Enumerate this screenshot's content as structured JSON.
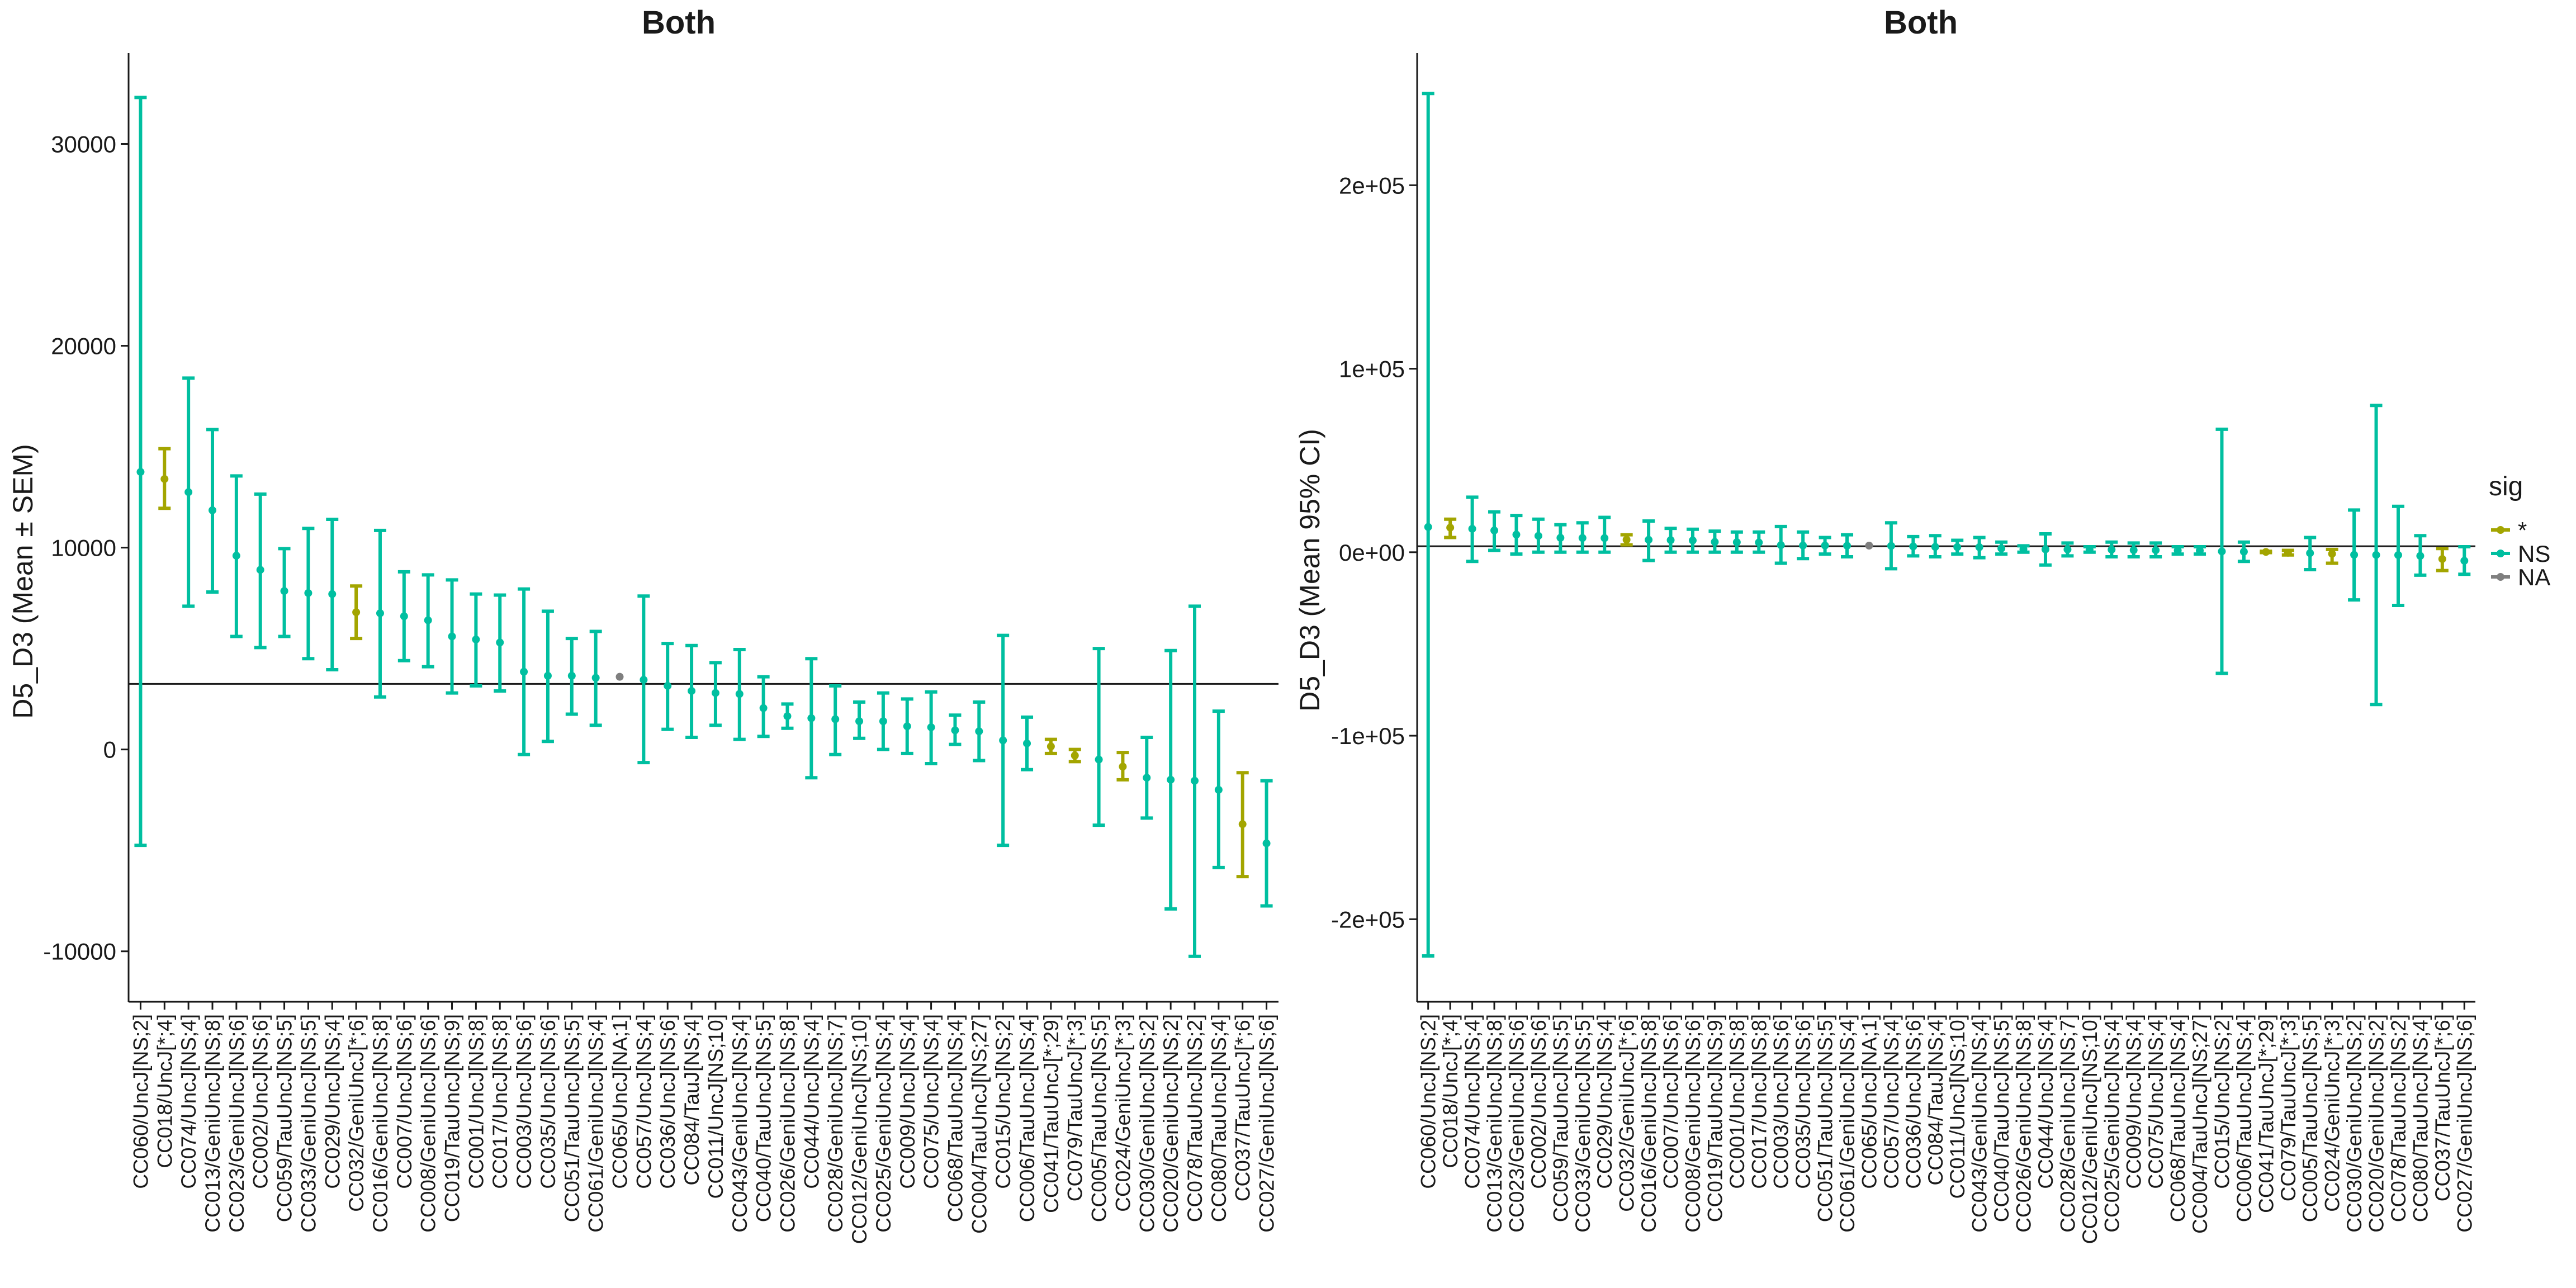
{
  "chart_data": [
    {
      "type": "errorbar",
      "title": "Both",
      "ylabel": "D5_D3 (Mean ± SEM)",
      "xlabel": "",
      "ylim": [
        -12500,
        34500
      ],
      "yticks": [
        -10000,
        0,
        10000,
        20000,
        30000
      ],
      "ytick_labels": [
        "-10000",
        "0",
        "10000",
        "20000",
        "30000"
      ],
      "hline": 3250,
      "categories": [
        "CC060/UncJ[NS;2]",
        "CC018/UncJ[*;4]",
        "CC074/UncJ[NS;4]",
        "CC013/GeniUncJ[NS;8]",
        "CC023/GeniUncJ[NS;6]",
        "CC002/UncJ[NS;6]",
        "CC059/TauUncJ[NS;5]",
        "CC033/GeniUncJ[NS;5]",
        "CC029/UncJ[NS;4]",
        "CC032/GeniUncJ[*;6]",
        "CC016/GeniUncJ[NS;8]",
        "CC007/UncJ[NS;6]",
        "CC008/GeniUncJ[NS;6]",
        "CC019/TauUncJ[NS;9]",
        "CC001/UncJ[NS;8]",
        "CC017/UncJ[NS;8]",
        "CC003/UncJ[NS;6]",
        "CC035/UncJ[NS;6]",
        "CC051/TauUncJ[NS;5]",
        "CC061/GeniUncJ[NS;4]",
        "CC065/UncJ[NA;1]",
        "CC057/UncJ[NS;4]",
        "CC036/UncJ[NS;6]",
        "CC084/TauJ[NS;4]",
        "CC011/UncJ[NS;10]",
        "CC043/GeniUncJ[NS;4]",
        "CC040/TauUncJ[NS;5]",
        "CC026/GeniUncJ[NS;8]",
        "CC044/UncJ[NS;4]",
        "CC028/GeniUncJ[NS;7]",
        "CC012/GeniUncJ[NS;10]",
        "CC025/GeniUncJ[NS;4]",
        "CC009/UncJ[NS;4]",
        "CC075/UncJ[NS;4]",
        "CC068/TauUncJ[NS;4]",
        "CC004/TauUncJ[NS;27]",
        "CC015/UncJ[NS;2]",
        "CC006/TauUncJ[NS;4]",
        "CC041/TauUncJ[*;29]",
        "CC079/TauUncJ[*;3]",
        "CC005/TauUncJ[NS;5]",
        "CC024/GeniUncJ[*;3]",
        "CC030/GeniUncJ[NS;2]",
        "CC020/GeniUncJ[NS;2]",
        "CC078/TauUncJ[NS;2]",
        "CC080/TauUncJ[NS;4]",
        "CC037/TauUncJ[*;6]",
        "CC027/GeniUncJ[NS;6]"
      ],
      "mean": [
        13750,
        13400,
        12750,
        11850,
        9600,
        8900,
        7850,
        7750,
        7700,
        6800,
        6750,
        6600,
        6400,
        5600,
        5450,
        5300,
        3850,
        3650,
        3650,
        3550,
        3600,
        3450,
        3150,
        2900,
        2800,
        2750,
        2050,
        1650,
        1550,
        1500,
        1400,
        1400,
        1150,
        1100,
        950,
        900,
        450,
        300,
        150,
        -300,
        -500,
        -850,
        -1400,
        -1500,
        -1550,
        -2000,
        -3700,
        -4650
      ],
      "lower": [
        -4750,
        11950,
        7100,
        7800,
        5600,
        5050,
        5600,
        4500,
        3950,
        5500,
        2600,
        4400,
        4100,
        2800,
        3150,
        2900,
        -250,
        400,
        1750,
        1200,
        3600,
        -650,
        1000,
        600,
        1200,
        500,
        650,
        1050,
        -1400,
        -250,
        550,
        0,
        -200,
        -700,
        250,
        -550,
        -4750,
        -1000,
        -200,
        -600,
        -3750,
        -1500,
        -3400,
        -7900,
        -10250,
        -5850,
        -6300,
        -7750
      ],
      "upper": [
        32300,
        14900,
        18400,
        15850,
        13550,
        12650,
        9950,
        10950,
        11400,
        8100,
        10850,
        8800,
        8650,
        8400,
        7700,
        7650,
        7950,
        6850,
        5500,
        5850,
        3600,
        7600,
        5250,
        5150,
        4300,
        4950,
        3600,
        2250,
        4500,
        3150,
        2350,
        2800,
        2500,
        2850,
        1700,
        2350,
        5650,
        1600,
        500,
        0,
        5000,
        -150,
        600,
        4900,
        7100,
        1900,
        -1150,
        -1550
      ],
      "sig": [
        "NS",
        "*",
        "NS",
        "NS",
        "NS",
        "NS",
        "NS",
        "NS",
        "NS",
        "*",
        "NS",
        "NS",
        "NS",
        "NS",
        "NS",
        "NS",
        "NS",
        "NS",
        "NS",
        "NS",
        "NA",
        "NS",
        "NS",
        "NS",
        "NS",
        "NS",
        "NS",
        "NS",
        "NS",
        "NS",
        "NS",
        "NS",
        "NS",
        "NS",
        "NS",
        "NS",
        "NS",
        "NS",
        "*",
        "*",
        "NS",
        "*",
        "NS",
        "NS",
        "NS",
        "NS",
        "*",
        "NS"
      ]
    },
    {
      "type": "errorbar",
      "title": "Both",
      "ylabel": "D5_D3 (Mean 95% CI)",
      "xlabel": "",
      "ylim": [
        -245000,
        272000
      ],
      "yticks": [
        -200000,
        -100000,
        0,
        100000,
        200000
      ],
      "ytick_labels": [
        "-2e+05",
        "-1e+05",
        "0e+00",
        "1e+05",
        "2e+05"
      ],
      "hline": 3250,
      "categories": [
        "CC060/UncJ[NS;2]",
        "CC018/UncJ[*;4]",
        "CC074/UncJ[NS;4]",
        "CC013/GeniUncJ[NS;8]",
        "CC023/GeniUncJ[NS;6]",
        "CC002/UncJ[NS;6]",
        "CC059/TauUncJ[NS;5]",
        "CC033/GeniUncJ[NS;5]",
        "CC029/UncJ[NS;4]",
        "CC032/GeniUncJ[*;6]",
        "CC016/GeniUncJ[NS;8]",
        "CC007/UncJ[NS;6]",
        "CC008/GeniUncJ[NS;6]",
        "CC019/TauUncJ[NS;9]",
        "CC001/UncJ[NS;8]",
        "CC017/UncJ[NS;8]",
        "CC003/UncJ[NS;6]",
        "CC035/UncJ[NS;6]",
        "CC051/TauUncJ[NS;5]",
        "CC061/GeniUncJ[NS;4]",
        "CC065/UncJ[NA;1]",
        "CC057/UncJ[NS;4]",
        "CC036/UncJ[NS;6]",
        "CC084/TauJ[NS;4]",
        "CC011/UncJ[NS;10]",
        "CC043/GeniUncJ[NS;4]",
        "CC040/TauUncJ[NS;5]",
        "CC026/GeniUncJ[NS;8]",
        "CC044/UncJ[NS;4]",
        "CC028/GeniUncJ[NS;7]",
        "CC012/GeniUncJ[NS;10]",
        "CC025/GeniUncJ[NS;4]",
        "CC009/UncJ[NS;4]",
        "CC075/UncJ[NS;4]",
        "CC068/TauUncJ[NS;4]",
        "CC004/TauUncJ[NS;27]",
        "CC015/UncJ[NS;2]",
        "CC006/TauUncJ[NS;4]",
        "CC041/TauUncJ[*;29]",
        "CC079/TauUncJ[*;3]",
        "CC005/TauUncJ[NS;5]",
        "CC024/GeniUncJ[*;3]",
        "CC030/GeniUncJ[NS;2]",
        "CC020/GeniUncJ[NS;2]",
        "CC078/TauUncJ[NS;2]",
        "CC080/TauUncJ[NS;4]",
        "CC037/TauUncJ[*;6]",
        "CC027/GeniUncJ[NS;6]"
      ],
      "mean": [
        13750,
        13400,
        12750,
        11850,
        9600,
        8900,
        7850,
        7750,
        7700,
        6800,
        6750,
        6600,
        6400,
        5600,
        5450,
        5300,
        3850,
        3650,
        3650,
        3550,
        3600,
        3450,
        3150,
        2900,
        2800,
        2750,
        2050,
        1650,
        1550,
        1500,
        1400,
        1400,
        1150,
        1100,
        950,
        900,
        450,
        300,
        150,
        -300,
        -500,
        -850,
        -1400,
        -1500,
        -1550,
        -2000,
        -3700,
        -4650
      ],
      "lower": [
        -220000,
        8000,
        -5000,
        1000,
        -1000,
        0,
        0,
        0,
        0,
        4000,
        -4500,
        0,
        0,
        0,
        0,
        0,
        -6000,
        -3500,
        -1000,
        -2500,
        3600,
        -9000,
        -2000,
        -2500,
        -1000,
        -3000,
        -1000,
        0,
        -7000,
        -2000,
        0,
        -2500,
        -2500,
        -2500,
        -1000,
        -1000,
        -66000,
        -5000,
        -200,
        -1500,
        -9500,
        -6000,
        -26000,
        -83000,
        -29000,
        -12500,
        -10000,
        -12000
      ],
      "upper": [
        250000,
        18000,
        30000,
        22000,
        20000,
        18000,
        15000,
        16000,
        19000,
        9500,
        17000,
        13000,
        12500,
        11500,
        11000,
        11000,
        14000,
        11000,
        8000,
        9500,
        3600,
        16000,
        8500,
        9000,
        6500,
        8000,
        5500,
        3500,
        10000,
        5000,
        3000,
        5500,
        5000,
        5000,
        3000,
        3000,
        67000,
        5500,
        500,
        1000,
        8000,
        1500,
        23000,
        80000,
        25000,
        9000,
        2000,
        3000
      ],
      "sig": [
        "NS",
        "*",
        "NS",
        "NS",
        "NS",
        "NS",
        "NS",
        "NS",
        "NS",
        "*",
        "NS",
        "NS",
        "NS",
        "NS",
        "NS",
        "NS",
        "NS",
        "NS",
        "NS",
        "NS",
        "NA",
        "NS",
        "NS",
        "NS",
        "NS",
        "NS",
        "NS",
        "NS",
        "NS",
        "NS",
        "NS",
        "NS",
        "NS",
        "NS",
        "NS",
        "NS",
        "NS",
        "NS",
        "*",
        "*",
        "NS",
        "*",
        "NS",
        "NS",
        "NS",
        "NS",
        "*",
        "NS"
      ]
    }
  ],
  "legend": {
    "title": "sig",
    "placement": "right",
    "items": [
      {
        "label": "*",
        "color": "#a3a500"
      },
      {
        "label": "NS",
        "color": "#00bfa0"
      },
      {
        "label": "NA",
        "color": "#7f7f7f"
      }
    ]
  },
  "colors": {
    "*": "#a3a500",
    "NS": "#00bfa0",
    "NA": "#7f7f7f",
    "axis": "#1a1a1a"
  }
}
